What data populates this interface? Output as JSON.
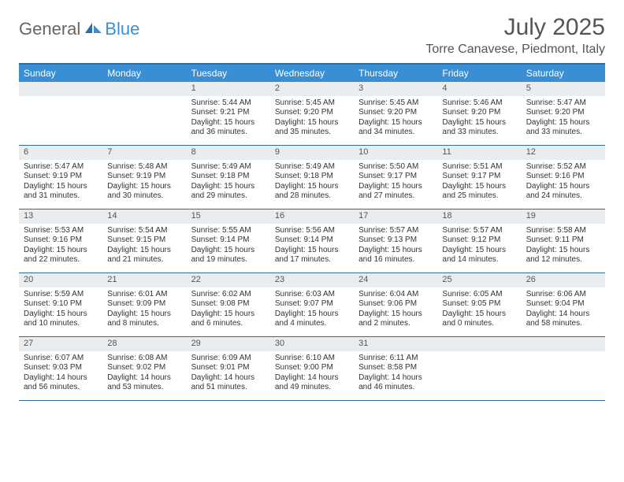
{
  "brand": {
    "part1": "General",
    "part2": "Blue"
  },
  "title": "July 2025",
  "location": "Torre Canavese, Piedmont, Italy",
  "colors": {
    "header_bg": "#3a8fd4",
    "rule": "#2b6ca3",
    "daynum_bg": "#e9edf0",
    "text": "#333333",
    "logo_blue": "#3a8fd4"
  },
  "days_of_week": [
    "Sunday",
    "Monday",
    "Tuesday",
    "Wednesday",
    "Thursday",
    "Friday",
    "Saturday"
  ],
  "weeks": [
    [
      null,
      null,
      {
        "n": "1",
        "sr": "5:44 AM",
        "ss": "9:21 PM",
        "dlh": "15",
        "dlm": "36"
      },
      {
        "n": "2",
        "sr": "5:45 AM",
        "ss": "9:20 PM",
        "dlh": "15",
        "dlm": "35"
      },
      {
        "n": "3",
        "sr": "5:45 AM",
        "ss": "9:20 PM",
        "dlh": "15",
        "dlm": "34"
      },
      {
        "n": "4",
        "sr": "5:46 AM",
        "ss": "9:20 PM",
        "dlh": "15",
        "dlm": "33"
      },
      {
        "n": "5",
        "sr": "5:47 AM",
        "ss": "9:20 PM",
        "dlh": "15",
        "dlm": "33"
      }
    ],
    [
      {
        "n": "6",
        "sr": "5:47 AM",
        "ss": "9:19 PM",
        "dlh": "15",
        "dlm": "31"
      },
      {
        "n": "7",
        "sr": "5:48 AM",
        "ss": "9:19 PM",
        "dlh": "15",
        "dlm": "30"
      },
      {
        "n": "8",
        "sr": "5:49 AM",
        "ss": "9:18 PM",
        "dlh": "15",
        "dlm": "29"
      },
      {
        "n": "9",
        "sr": "5:49 AM",
        "ss": "9:18 PM",
        "dlh": "15",
        "dlm": "28"
      },
      {
        "n": "10",
        "sr": "5:50 AM",
        "ss": "9:17 PM",
        "dlh": "15",
        "dlm": "27"
      },
      {
        "n": "11",
        "sr": "5:51 AM",
        "ss": "9:17 PM",
        "dlh": "15",
        "dlm": "25"
      },
      {
        "n": "12",
        "sr": "5:52 AM",
        "ss": "9:16 PM",
        "dlh": "15",
        "dlm": "24"
      }
    ],
    [
      {
        "n": "13",
        "sr": "5:53 AM",
        "ss": "9:16 PM",
        "dlh": "15",
        "dlm": "22"
      },
      {
        "n": "14",
        "sr": "5:54 AM",
        "ss": "9:15 PM",
        "dlh": "15",
        "dlm": "21"
      },
      {
        "n": "15",
        "sr": "5:55 AM",
        "ss": "9:14 PM",
        "dlh": "15",
        "dlm": "19"
      },
      {
        "n": "16",
        "sr": "5:56 AM",
        "ss": "9:14 PM",
        "dlh": "15",
        "dlm": "17"
      },
      {
        "n": "17",
        "sr": "5:57 AM",
        "ss": "9:13 PM",
        "dlh": "15",
        "dlm": "16"
      },
      {
        "n": "18",
        "sr": "5:57 AM",
        "ss": "9:12 PM",
        "dlh": "15",
        "dlm": "14"
      },
      {
        "n": "19",
        "sr": "5:58 AM",
        "ss": "9:11 PM",
        "dlh": "15",
        "dlm": "12"
      }
    ],
    [
      {
        "n": "20",
        "sr": "5:59 AM",
        "ss": "9:10 PM",
        "dlh": "15",
        "dlm": "10"
      },
      {
        "n": "21",
        "sr": "6:01 AM",
        "ss": "9:09 PM",
        "dlh": "15",
        "dlm": "8"
      },
      {
        "n": "22",
        "sr": "6:02 AM",
        "ss": "9:08 PM",
        "dlh": "15",
        "dlm": "6"
      },
      {
        "n": "23",
        "sr": "6:03 AM",
        "ss": "9:07 PM",
        "dlh": "15",
        "dlm": "4"
      },
      {
        "n": "24",
        "sr": "6:04 AM",
        "ss": "9:06 PM",
        "dlh": "15",
        "dlm": "2"
      },
      {
        "n": "25",
        "sr": "6:05 AM",
        "ss": "9:05 PM",
        "dlh": "15",
        "dlm": "0"
      },
      {
        "n": "26",
        "sr": "6:06 AM",
        "ss": "9:04 PM",
        "dlh": "14",
        "dlm": "58"
      }
    ],
    [
      {
        "n": "27",
        "sr": "6:07 AM",
        "ss": "9:03 PM",
        "dlh": "14",
        "dlm": "56"
      },
      {
        "n": "28",
        "sr": "6:08 AM",
        "ss": "9:02 PM",
        "dlh": "14",
        "dlm": "53"
      },
      {
        "n": "29",
        "sr": "6:09 AM",
        "ss": "9:01 PM",
        "dlh": "14",
        "dlm": "51"
      },
      {
        "n": "30",
        "sr": "6:10 AM",
        "ss": "9:00 PM",
        "dlh": "14",
        "dlm": "49"
      },
      {
        "n": "31",
        "sr": "6:11 AM",
        "ss": "8:58 PM",
        "dlh": "14",
        "dlm": "46"
      },
      null,
      null
    ]
  ],
  "labels": {
    "sunrise": "Sunrise:",
    "sunset": "Sunset:",
    "daylight": "Daylight:",
    "hours": "hours",
    "and": "and",
    "minutes": "minutes."
  }
}
